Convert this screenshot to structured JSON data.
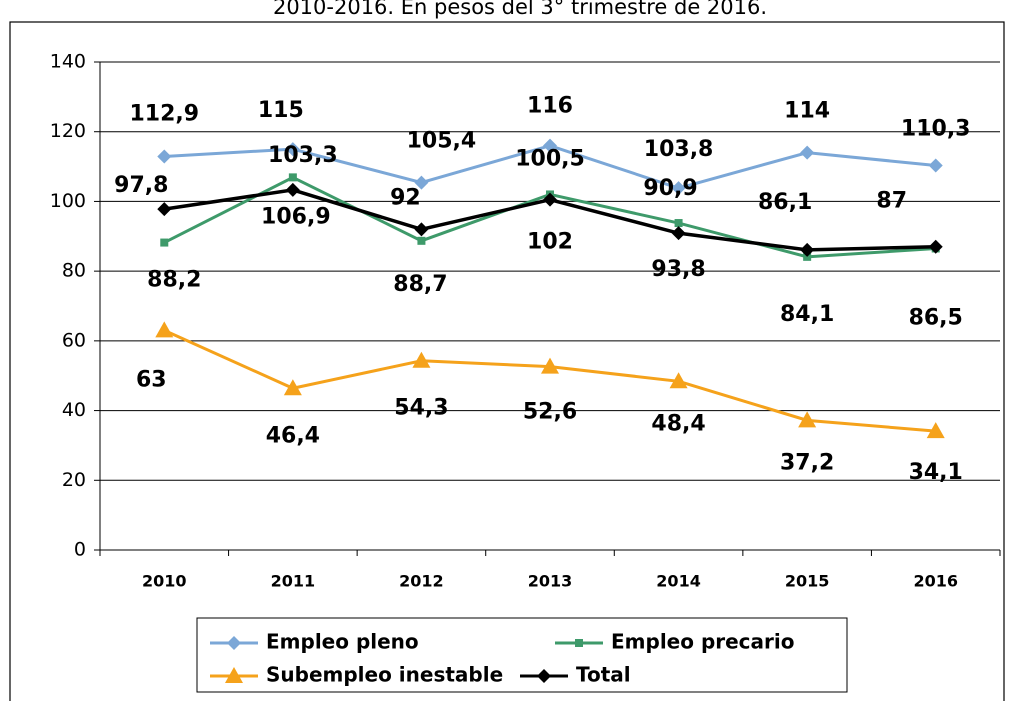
{
  "chart_data": {
    "type": "line",
    "title": "2010-2016. En pesos del 3° trimestre de 2016.",
    "categories": [
      "2010",
      "2011",
      "2012",
      "2013",
      "2014",
      "2015",
      "2016"
    ],
    "series": [
      {
        "name": "Empleo pleno",
        "color": "#7ba7d7",
        "marker": "diamond",
        "values": [
          112.9,
          115,
          105.4,
          116,
          103.8,
          114,
          110.3
        ],
        "value_labels": [
          "112,9",
          "115",
          "105,4",
          "116",
          "103,8",
          "114",
          "110,3"
        ]
      },
      {
        "name": "Empleo precario",
        "color": "#3e9a6a",
        "marker": "square",
        "values": [
          88.2,
          106.9,
          88.7,
          102,
          93.8,
          84.1,
          86.5
        ],
        "value_labels": [
          "88,2",
          "106,9",
          "88,7",
          "102",
          "93,8",
          "84,1",
          "86,5"
        ]
      },
      {
        "name": "Subempleo inestable",
        "color": "#f5a21b",
        "marker": "triangle",
        "values": [
          63,
          46.4,
          54.3,
          52.6,
          48.4,
          37.2,
          34.1
        ],
        "value_labels": [
          "63",
          "46,4",
          "54,3",
          "52,6",
          "48,4",
          "37,2",
          "34,1"
        ]
      },
      {
        "name": "Total",
        "color": "#000000",
        "marker": "diamond",
        "values": [
          97.8,
          103.3,
          92,
          100.5,
          90.9,
          86.1,
          87
        ],
        "value_labels": [
          "97,8",
          "103,3",
          "92",
          "100,5",
          "90,9",
          "86,1",
          "87"
        ]
      }
    ],
    "ylim": [
      0,
      140
    ],
    "yticks": [
      0,
      20,
      40,
      60,
      80,
      100,
      120,
      140
    ],
    "grid": true,
    "legend": "bottom"
  }
}
